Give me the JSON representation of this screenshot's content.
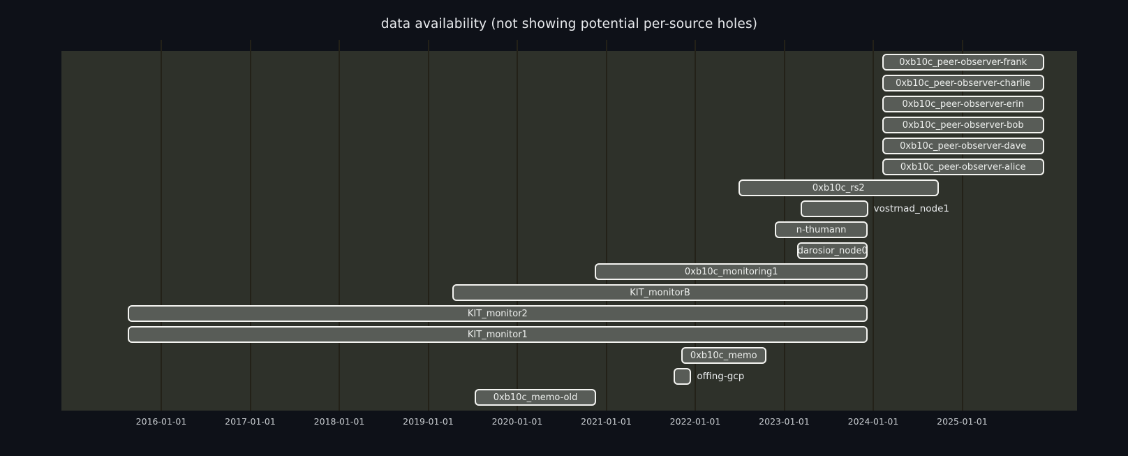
{
  "chart_data": {
    "type": "bar",
    "variant": "gantt-timeline",
    "title": "data availability (not showing potential per-source holes)",
    "xlabel": "",
    "ylabel": "",
    "grid": "vertical-yearly",
    "legend": "none",
    "x_range": [
      "2014-11-17",
      "2026-04-15"
    ],
    "x_ticks": [
      "2016-01-01",
      "2017-01-01",
      "2018-01-01",
      "2019-01-01",
      "2020-01-01",
      "2021-01-01",
      "2022-01-01",
      "2023-01-01",
      "2024-01-01",
      "2025-01-01"
    ],
    "rows": [
      {
        "label": "0xb10c_peer-observer-frank",
        "start": "2024-02-06",
        "end": "2025-12-03",
        "label_position": "inside"
      },
      {
        "label": "0xb10c_peer-observer-charlie",
        "start": "2024-02-06",
        "end": "2025-12-03",
        "label_position": "inside"
      },
      {
        "label": "0xb10c_peer-observer-erin",
        "start": "2024-02-06",
        "end": "2025-12-03",
        "label_position": "inside"
      },
      {
        "label": "0xb10c_peer-observer-bob",
        "start": "2024-02-06",
        "end": "2025-12-03",
        "label_position": "inside"
      },
      {
        "label": "0xb10c_peer-observer-dave",
        "start": "2024-02-06",
        "end": "2025-12-03",
        "label_position": "inside"
      },
      {
        "label": "0xb10c_peer-observer-alice",
        "start": "2024-02-06",
        "end": "2025-12-03",
        "label_position": "inside"
      },
      {
        "label": "0xb10c_rs2",
        "start": "2022-06-27",
        "end": "2024-09-26",
        "label_position": "inside"
      },
      {
        "label": "vostrnad_node1",
        "start": "2023-03-10",
        "end": "2023-12-11",
        "label_position": "right"
      },
      {
        "label": "n-thumann",
        "start": "2022-11-24",
        "end": "2023-12-09",
        "label_position": "inside"
      },
      {
        "label": "darosior_node0",
        "start": "2023-02-24",
        "end": "2023-12-09",
        "label_position": "inside"
      },
      {
        "label": "0xb10c_monitoring1",
        "start": "2020-11-16",
        "end": "2023-12-09",
        "label_position": "inside"
      },
      {
        "label": "KIT_monitorB",
        "start": "2019-04-10",
        "end": "2023-12-09",
        "label_position": "inside"
      },
      {
        "label": "KIT_monitor2",
        "start": "2015-08-16",
        "end": "2023-12-09",
        "label_position": "inside"
      },
      {
        "label": "KIT_monitor1",
        "start": "2015-08-16",
        "end": "2023-12-09",
        "label_position": "inside"
      },
      {
        "label": "0xb10c_memo",
        "start": "2021-11-04",
        "end": "2022-10-19",
        "label_position": "inside"
      },
      {
        "label": "offing-gcp",
        "start": "2021-10-03",
        "end": "2021-12-16",
        "label_position": "right"
      },
      {
        "label": "0xb10c_memo-old",
        "start": "2019-07-11",
        "end": "2020-11-20",
        "label_position": "inside"
      }
    ],
    "colors": {
      "page_background": "#0e1118",
      "plot_background": "#2e312a",
      "gridline": "#232118",
      "bar_fill": "#585c57",
      "bar_border": "#f4f4f1",
      "text": "#e9ebee",
      "tick_text": "#c9cdd1"
    }
  }
}
